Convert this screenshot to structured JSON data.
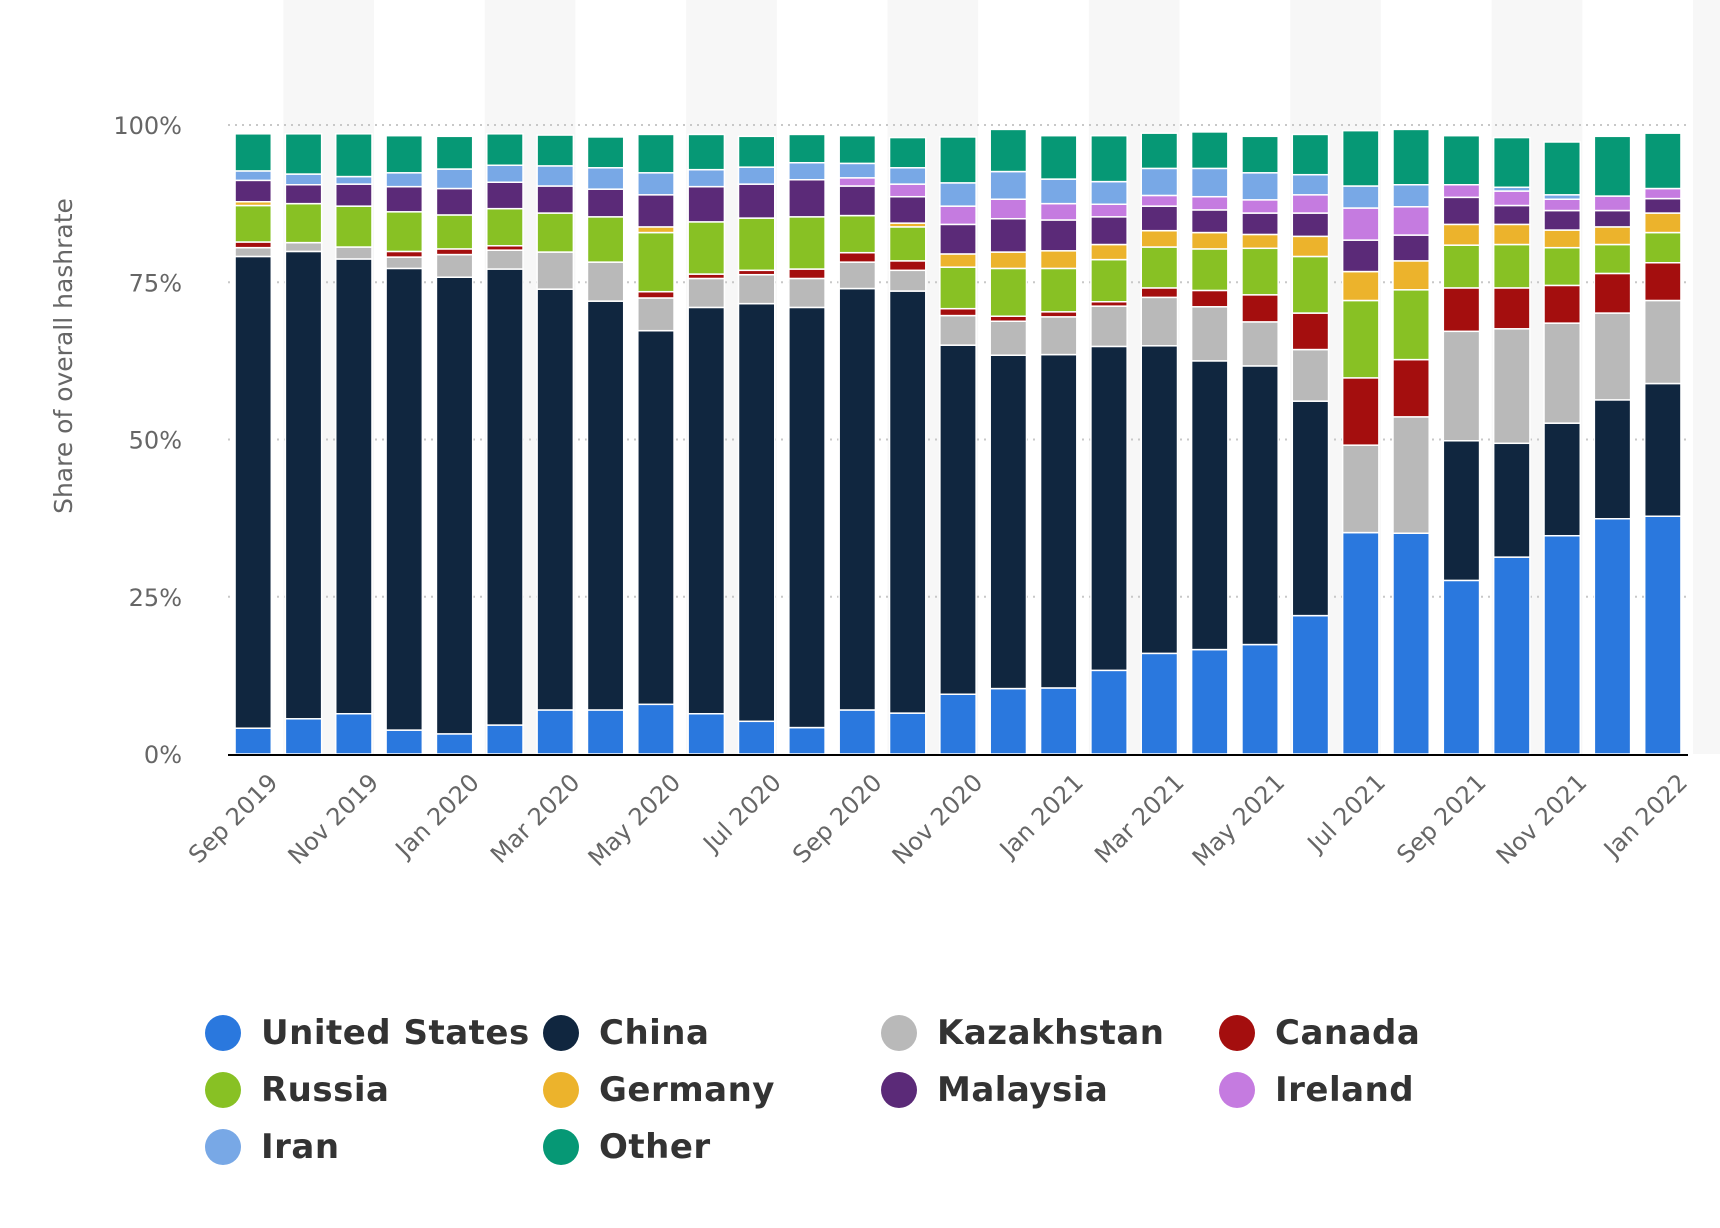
{
  "chart_data": {
    "type": "bar",
    "stacked": true,
    "ylabel": "Share of overall hashrate",
    "ylim": [
      0,
      100
    ],
    "yticks": [
      "0%",
      "25%",
      "50%",
      "75%",
      "100%"
    ],
    "categories": [
      "Sep 2019",
      "Oct 2019",
      "Nov 2019",
      "Dec 2019",
      "Jan 2020",
      "Feb 2020",
      "Mar 2020",
      "Apr 2020",
      "May 2020",
      "Jun 2020",
      "Jul 2020",
      "Aug 2020",
      "Sep 2020",
      "Oct 2020",
      "Nov 2020",
      "Dec 2020",
      "Jan 2021",
      "Feb 2021",
      "Mar 2021",
      "Apr 2021",
      "May 2021",
      "Jun 2021",
      "Jul 2021",
      "Aug 2021",
      "Sep 2021",
      "Oct 2021",
      "Nov 2021",
      "Dec 2021",
      "Jan 2022"
    ],
    "x_tick_labels": [
      "Sep 2019",
      "Nov 2019",
      "Jan 2020",
      "Mar 2020",
      "May 2020",
      "Jul 2020",
      "Sep 2020",
      "Nov 2020",
      "Jan 2021",
      "Mar 2021",
      "May 2021",
      "Jul 2021",
      "Sep 2021",
      "Nov 2021",
      "Jan 2022"
    ],
    "series": [
      {
        "name": "United States",
        "color": "#2a78de",
        "values": [
          4.1,
          5.6,
          6.4,
          3.8,
          3.2,
          4.6,
          7.0,
          7.0,
          7.9,
          6.4,
          5.2,
          4.2,
          7.0,
          6.5,
          9.5,
          10.4,
          10.5,
          13.3,
          16.0,
          16.6,
          17.4,
          22.0,
          35.2,
          35.1,
          27.6,
          31.3,
          34.7,
          37.4,
          37.8
        ]
      },
      {
        "name": "China",
        "color": "#10263f",
        "values": [
          75.0,
          74.3,
          72.3,
          73.4,
          72.6,
          72.5,
          66.9,
          65.0,
          59.4,
          64.6,
          66.4,
          66.8,
          67.0,
          67.1,
          55.5,
          53.0,
          53.0,
          51.5,
          48.9,
          45.9,
          44.3,
          34.1,
          0,
          0,
          22.2,
          18.1,
          17.9,
          18.9,
          21.1
        ]
      },
      {
        "name": "Kazakhstan",
        "color": "#b9b9b9",
        "values": [
          1.4,
          1.4,
          1.9,
          1.8,
          3.6,
          3.0,
          5.9,
          6.2,
          5.2,
          4.6,
          4.6,
          4.6,
          4.2,
          3.3,
          4.7,
          5.4,
          6.0,
          6.4,
          7.7,
          8.6,
          7.0,
          8.2,
          13.9,
          18.5,
          17.4,
          18.2,
          15.9,
          13.8,
          13.2
        ]
      },
      {
        "name": "Canada",
        "color": "#a40e0e",
        "values": [
          0.9,
          0,
          0,
          0.9,
          0.9,
          0.7,
          0,
          0,
          1.0,
          0.7,
          0.7,
          1.5,
          1.5,
          1.5,
          1.1,
          0.8,
          0.8,
          0.7,
          1.5,
          2.6,
          4.3,
          5.8,
          10.7,
          9.1,
          6.9,
          6.5,
          6.0,
          6.3,
          6.0
        ]
      },
      {
        "name": "Russia",
        "color": "#88c124",
        "values": [
          5.8,
          6.2,
          6.5,
          6.3,
          5.4,
          5.9,
          6.2,
          7.2,
          9.4,
          8.3,
          8.3,
          8.3,
          5.9,
          5.4,
          6.6,
          7.6,
          6.9,
          6.7,
          6.5,
          6.6,
          7.4,
          9.0,
          12.3,
          11.1,
          6.8,
          6.9,
          6.0,
          4.6,
          4.8
        ]
      },
      {
        "name": "Germany",
        "color": "#ecb32c",
        "values": [
          0.6,
          0,
          0,
          0,
          0,
          0,
          0,
          0,
          0.9,
          0,
          0,
          0,
          0,
          0.6,
          2.1,
          2.6,
          2.8,
          2.4,
          2.6,
          2.6,
          2.2,
          3.2,
          4.6,
          4.6,
          3.3,
          3.2,
          2.8,
          2.8,
          3.1
        ]
      },
      {
        "name": "Malaysia",
        "color": "#5b2a78",
        "values": [
          3.4,
          3.0,
          3.5,
          4.0,
          4.2,
          4.2,
          4.3,
          4.4,
          5.1,
          5.6,
          5.4,
          5.9,
          4.7,
          4.2,
          4.7,
          5.3,
          4.9,
          4.4,
          3.9,
          3.6,
          3.4,
          3.7,
          5.0,
          4.1,
          4.3,
          3.0,
          3.1,
          2.6,
          2.3
        ]
      },
      {
        "name": "Ireland",
        "color": "#c57be0",
        "values": [
          0,
          0,
          0,
          0,
          0,
          0,
          0,
          0,
          0,
          0,
          0,
          0,
          1.3,
          2.0,
          2.9,
          3.1,
          2.6,
          2.0,
          1.7,
          2.1,
          2.1,
          2.9,
          5.1,
          4.5,
          2.0,
          2.3,
          1.8,
          2.3,
          1.6
        ]
      },
      {
        "name": "Iran",
        "color": "#78a8e6",
        "values": [
          1.5,
          1.7,
          1.2,
          2.2,
          3.1,
          2.7,
          3.2,
          3.4,
          3.5,
          2.7,
          2.7,
          2.7,
          2.3,
          2.6,
          3.7,
          4.4,
          3.9,
          3.6,
          4.3,
          4.5,
          4.3,
          3.2,
          3.5,
          3.5,
          0,
          0.6,
          0.7,
          0,
          0
        ]
      },
      {
        "name": "Other",
        "color": "#069875",
        "values": [
          5.9,
          6.4,
          6.8,
          5.9,
          5.2,
          5.0,
          4.9,
          4.9,
          6.1,
          5.6,
          4.9,
          4.5,
          4.4,
          4.8,
          7.3,
          6.7,
          6.9,
          7.3,
          5.6,
          5.8,
          5.8,
          6.4,
          8.8,
          8.8,
          7.8,
          7.9,
          8.4,
          9.5,
          8.8
        ]
      }
    ]
  }
}
